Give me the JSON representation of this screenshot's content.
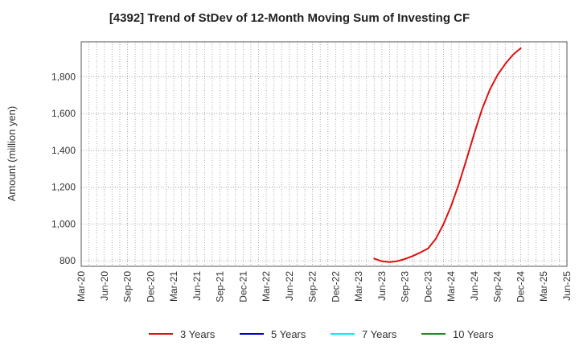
{
  "chart_data": {
    "type": "line",
    "title": "[4392]  Trend of StDev of 12-Month Moving Sum of Investing CF",
    "xlabel": "",
    "ylabel": "Amount (million yen)",
    "ylim": [
      770,
      1990
    ],
    "yticks": [
      800,
      1000,
      1200,
      1400,
      1600,
      1800
    ],
    "ytick_labels": [
      "800",
      "1,000",
      "1,200",
      "1,400",
      "1,600",
      "1,800"
    ],
    "xtick_labels": [
      "Mar-20",
      "Jun-20",
      "Sep-20",
      "Dec-20",
      "Mar-21",
      "Jun-21",
      "Sep-21",
      "Dec-21",
      "Mar-22",
      "Jun-22",
      "Sep-22",
      "Dec-22",
      "Mar-23",
      "Jun-23",
      "Sep-23",
      "Dec-23",
      "Mar-24",
      "Jun-24",
      "Sep-24",
      "Dec-24",
      "Mar-25",
      "Jun-25"
    ],
    "x_start": "2020-03",
    "x_end": "2025-06",
    "grid": true,
    "legend_position": "bottom",
    "series": [
      {
        "name": "3 Years",
        "color": "#dd1111",
        "x": [
          "2023-05",
          "2023-06",
          "2023-07",
          "2023-08",
          "2023-09",
          "2023-10",
          "2023-11",
          "2023-12",
          "2024-01",
          "2024-02",
          "2024-03",
          "2024-04",
          "2024-05",
          "2024-06",
          "2024-07",
          "2024-08",
          "2024-09",
          "2024-10",
          "2024-11",
          "2024-12"
        ],
        "values": [
          812,
          797,
          793,
          798,
          810,
          826,
          845,
          867,
          920,
          1000,
          1100,
          1220,
          1355,
          1495,
          1625,
          1730,
          1810,
          1870,
          1920,
          1955
        ]
      },
      {
        "name": "5 Years",
        "color": "#0000cc",
        "x": [],
        "values": []
      },
      {
        "name": "7 Years",
        "color": "#00eeee",
        "x": [],
        "values": []
      },
      {
        "name": "10 Years",
        "color": "#228b22",
        "x": [],
        "values": []
      }
    ]
  }
}
